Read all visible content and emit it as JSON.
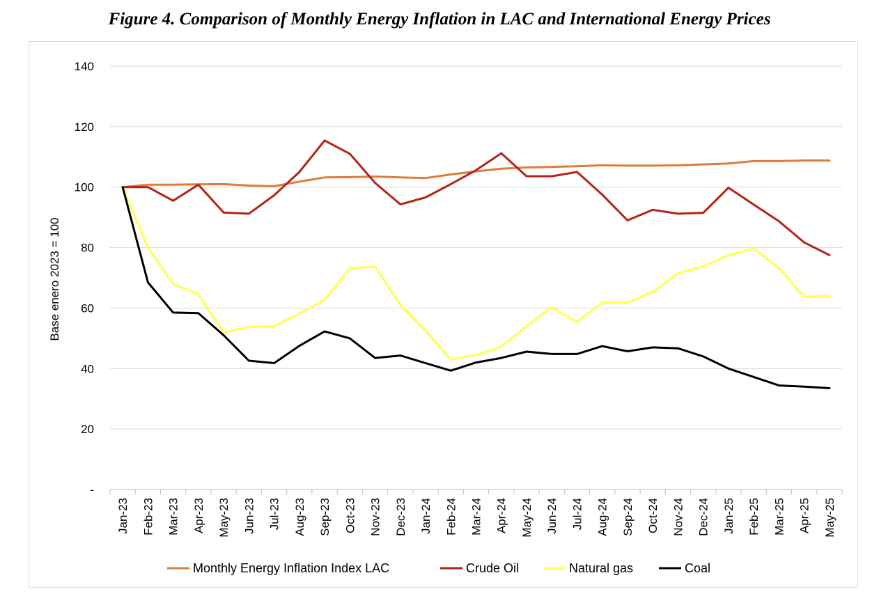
{
  "chart_data": {
    "type": "line",
    "title": "Figure 4. Comparison of Monthly Energy Inflation in LAC and International Energy Prices",
    "ylabel": "Base enero 2023 = 100",
    "xlabel": "",
    "ylim": [
      0,
      140
    ],
    "yticks": [
      0,
      20,
      40,
      60,
      80,
      100,
      120,
      140
    ],
    "ytick_labels": [
      "-",
      "20",
      "40",
      "60",
      "80",
      "100",
      "120",
      "140"
    ],
    "grid": true,
    "legend_position": "bottom",
    "x": [
      "Jan-23",
      "Feb-23",
      "Mar-23",
      "Apr-23",
      "May-23",
      "Jun-23",
      "Jul-23",
      "Aug-23",
      "Sep-23",
      "Oct-23",
      "Nov-23",
      "Dec-23",
      "Jan-24",
      "Feb-24",
      "Mar-24",
      "Apr-24",
      "May-24",
      "Jun-24",
      "Jul-24",
      "Aug-24",
      "Sep-24",
      "Oct-24",
      "Nov-24",
      "Dec-24",
      "Jan-25",
      "Feb-25",
      "Mar-25",
      "Apr-25",
      "May-25"
    ],
    "series": [
      {
        "name": "Monthly Energy Inflation Index LAC",
        "color": "#E07B39",
        "values": [
          100,
          100.8,
          100.8,
          100.9,
          101,
          100.5,
          100.3,
          101.8,
          103.2,
          103.3,
          103.5,
          103.2,
          103,
          104.2,
          105.2,
          106.1,
          106.5,
          106.7,
          106.9,
          107.2,
          107.1,
          107.1,
          107.2,
          107.5,
          107.8,
          108.6,
          108.6,
          108.8,
          108.8
        ]
      },
      {
        "name": "Crude Oil",
        "color": "#B22418",
        "values": [
          100,
          100,
          95.5,
          100.8,
          91.6,
          91.2,
          97.3,
          105,
          115.4,
          111,
          101.4,
          94.3,
          96.6,
          101,
          105.6,
          111.2,
          103.6,
          103.6,
          105,
          97.5,
          89,
          92.5,
          91.2,
          91.5,
          99.8,
          94.2,
          88.7,
          81.7,
          77.5
        ]
      },
      {
        "name": "Natural gas",
        "color": "#FFFF4D",
        "values": [
          100,
          80,
          68,
          64.5,
          52,
          53.8,
          54,
          58.2,
          62.7,
          73.2,
          73.7,
          61,
          52.5,
          43,
          44.5,
          47.2,
          54,
          60.2,
          55.5,
          61.8,
          61.8,
          65.4,
          71.5,
          73.8,
          77.4,
          79.8,
          73.2,
          63.7,
          64.1
        ]
      },
      {
        "name": "Coal",
        "color": "#000000",
        "values": [
          100,
          68.5,
          58.5,
          58.3,
          51,
          42.6,
          41.8,
          47.5,
          52.3,
          50,
          43.5,
          44.3,
          41.8,
          39.3,
          42,
          43.5,
          45.6,
          44.8,
          44.8,
          47.4,
          45.7,
          47,
          46.7,
          44,
          40,
          37.2,
          34.4,
          34,
          33.5
        ]
      }
    ]
  }
}
